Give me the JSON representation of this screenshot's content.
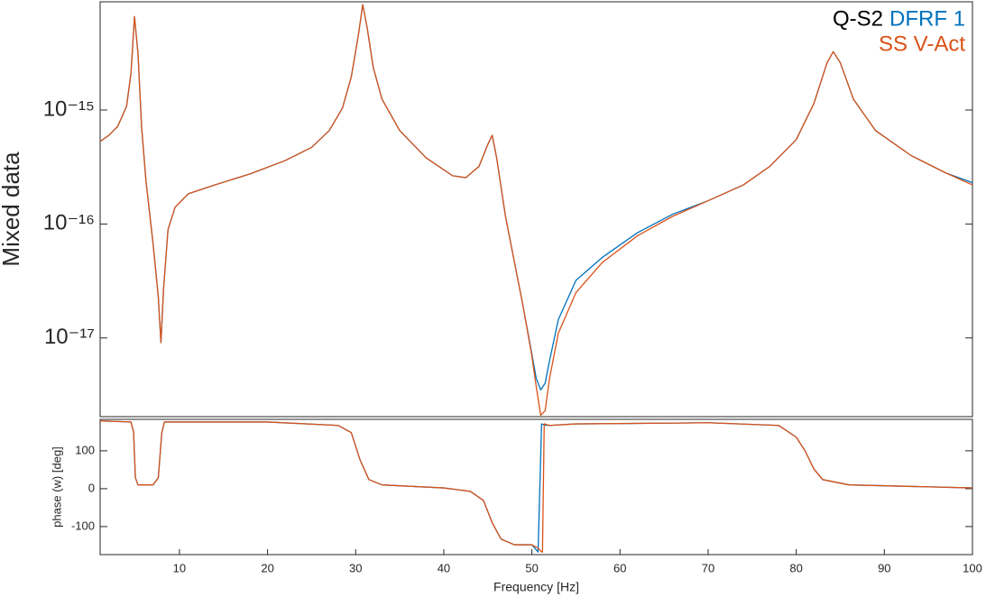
{
  "chart_data": [
    {
      "type": "line",
      "ylabel": "Mixed data",
      "yscale": "log",
      "legend_title": "Q-S2",
      "legend": "top-right",
      "xlim": [
        1,
        100
      ],
      "ylim": [
        2.04e-18,
        8.9e-15
      ],
      "yticks": [
        {
          "value": 1e-17,
          "label": "10⁻¹⁷"
        },
        {
          "value": 1e-16,
          "label": "10⁻¹⁶"
        },
        {
          "value": 1e-15,
          "label": "10⁻¹⁵"
        }
      ],
      "x": [
        1,
        2,
        3,
        4,
        4.5,
        4.9,
        5.3,
        5.7,
        6.2,
        7,
        7.6,
        7.9,
        8.2,
        8.7,
        9.5,
        11,
        14,
        18,
        22,
        25,
        27,
        28.5,
        29.5,
        30.3,
        30.8,
        31.3,
        32,
        33,
        35,
        38,
        41,
        42.5,
        44,
        45,
        45.5,
        46,
        47,
        48,
        49,
        50,
        50.5,
        51,
        51.5,
        52,
        53,
        55,
        58,
        62,
        66,
        70,
        74,
        77,
        80,
        82,
        83.5,
        84.2,
        85,
        86.5,
        89,
        93,
        97,
        100
      ],
      "series": [
        {
          "name": "DFRF 1",
          "color": "#0072bd",
          "values": [
            5.3e-16,
            6e-16,
            7.2e-16,
            1.08e-15,
            2.1e-15,
            6.6e-15,
            3.1e-15,
            7.2e-16,
            2.4e-16,
            6.8e-17,
            2.3e-17,
            9.1e-18,
            2.7e-17,
            8.9e-17,
            1.4e-16,
            1.84e-16,
            2.2e-16,
            2.75e-16,
            3.6e-16,
            4.7e-16,
            6.6e-16,
            1.04e-15,
            1.95e-15,
            4.5e-15,
            8.4e-15,
            5.3e-15,
            2.35e-15,
            1.24e-15,
            6.6e-16,
            3.8e-16,
            2.65e-16,
            2.55e-16,
            3.2e-16,
            5e-16,
            6e-16,
            3.8e-16,
            1.17e-16,
            4.7e-17,
            1.9e-17,
            7.2e-18,
            4.4e-18,
            3.5e-18,
            4e-18,
            6.3e-18,
            1.45e-17,
            3.2e-17,
            5.1e-17,
            8.4e-17,
            1.22e-16,
            1.6e-16,
            2.2e-16,
            3.2e-16,
            5.5e-16,
            1.14e-15,
            2.6e-15,
            3.25e-15,
            2.6e-15,
            1.24e-15,
            6.6e-16,
            4e-16,
            2.8e-16,
            2.3e-16
          ]
        },
        {
          "name": "SS V-Act",
          "color": "#d95319",
          "values": [
            5.3e-16,
            6e-16,
            7.2e-16,
            1.08e-15,
            2.1e-15,
            6.6e-15,
            3.1e-15,
            7.2e-16,
            2.4e-16,
            6.8e-17,
            2.3e-17,
            9.1e-18,
            2.7e-17,
            8.9e-17,
            1.4e-16,
            1.84e-16,
            2.2e-16,
            2.75e-16,
            3.6e-16,
            4.7e-16,
            6.6e-16,
            1.04e-15,
            1.95e-15,
            4.5e-15,
            8.4e-15,
            5.3e-15,
            2.35e-15,
            1.24e-15,
            6.6e-16,
            3.8e-16,
            2.65e-16,
            2.55e-16,
            3.2e-16,
            5e-16,
            6e-16,
            3.8e-16,
            1.17e-16,
            4.7e-17,
            1.9e-17,
            6.9e-18,
            3.7e-18,
            2.1e-18,
            2.3e-18,
            4.4e-18,
            1.1e-17,
            2.5e-17,
            4.6e-17,
            7.9e-17,
            1.17e-16,
            1.6e-16,
            2.2e-16,
            3.2e-16,
            5.5e-16,
            1.14e-15,
            2.6e-15,
            3.25e-15,
            2.6e-15,
            1.24e-15,
            6.6e-16,
            4e-16,
            2.8e-16,
            2.2e-16
          ]
        }
      ]
    },
    {
      "type": "line",
      "ylabel": "phase (w) [deg]",
      "xlabel": "Frequency [Hz]",
      "xlim": [
        1,
        100
      ],
      "ylim": [
        -174,
        183
      ],
      "xticks": [
        10,
        20,
        30,
        40,
        50,
        60,
        70,
        80,
        90,
        100
      ],
      "yticks": [
        -100,
        0,
        100
      ],
      "x": [
        1,
        4.5,
        4.8,
        5,
        5.3,
        7,
        7.6,
        8,
        8.3,
        20,
        28,
        29.5,
        30.5,
        31.5,
        33,
        40,
        43,
        44.5,
        45.5,
        46.5,
        48,
        50,
        50.7,
        51.1,
        51.2,
        51.4,
        52,
        55,
        70,
        78,
        80,
        81,
        82,
        83,
        86,
        100
      ],
      "series": [
        {
          "name": "DFRF 1",
          "color": "#0072bd",
          "values": [
            179,
            176,
            148,
            29,
            10,
            10,
            29,
            148,
            176,
            176,
            167,
            148,
            76,
            24,
            10,
            2,
            -7,
            -31,
            -90,
            -133,
            -148,
            -148,
            -167,
            171,
            170,
            168,
            167,
            171,
            174,
            167,
            136,
            100,
            52,
            24,
            10,
            2
          ]
        },
        {
          "name": "SS V-Act",
          "color": "#d95319",
          "values": [
            179,
            176,
            148,
            29,
            10,
            10,
            29,
            148,
            176,
            176,
            167,
            148,
            76,
            24,
            10,
            2,
            -7,
            -31,
            -90,
            -133,
            -148,
            -148,
            -157,
            -167,
            -167,
            171,
            167,
            171,
            174,
            167,
            136,
            100,
            52,
            24,
            10,
            2
          ]
        }
      ]
    }
  ]
}
